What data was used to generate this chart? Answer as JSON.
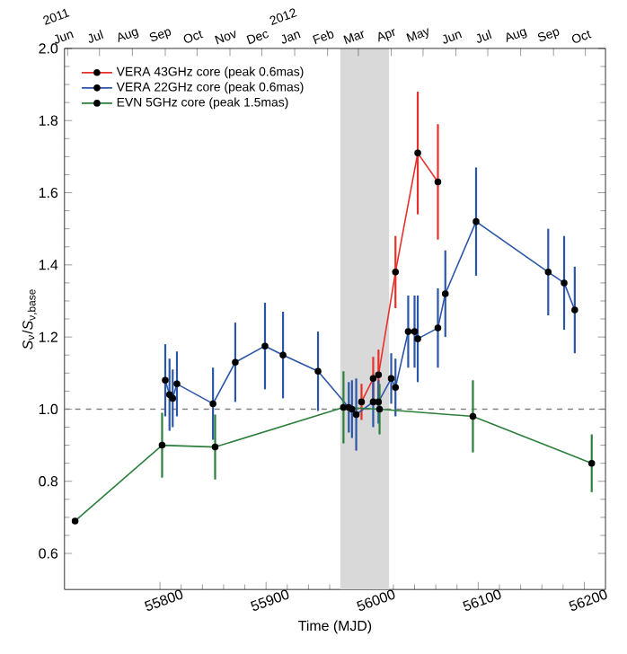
{
  "chart_data": {
    "type": "line",
    "xlabel": "Time (MJD)",
    "ylabel": "*S*$_{ν}$/*S*$_{ν,base}$",
    "xlim": [
      55710,
      56220
    ],
    "xticks": [
      55800,
      55900,
      56000,
      56100,
      56200
    ],
    "x2lim": [
      "2011-05-29",
      "2012-10-20"
    ],
    "x2ticks": [
      {
        "value": "2011-06",
        "label": "Jun"
      },
      {
        "value": "2011-07",
        "label": "Jul"
      },
      {
        "value": "2011-08",
        "label": "Aug"
      },
      {
        "value": "2011-09",
        "label": "Sep"
      },
      {
        "value": "2011-10",
        "label": "Oct"
      },
      {
        "value": "2011-11",
        "label": "Nov"
      },
      {
        "value": "2011-12",
        "label": "Dec"
      },
      {
        "value": "2012-01",
        "label": "Jan"
      },
      {
        "value": "2012-02",
        "label": "Feb"
      },
      {
        "value": "2012-03",
        "label": "Mar"
      },
      {
        "value": "2012-04",
        "label": "Apr"
      },
      {
        "value": "2012-05",
        "label": "May"
      },
      {
        "value": "2012-06",
        "label": "Jun"
      },
      {
        "value": "2012-07",
        "label": "Jul"
      },
      {
        "value": "2012-08",
        "label": "Aug"
      },
      {
        "value": "2012-09",
        "label": "Sep"
      },
      {
        "value": "2012-10",
        "label": "Oct"
      }
    ],
    "ylim": [
      0.5,
      2.0
    ],
    "yticks": [
      0.6,
      0.8,
      {
        "value": 1.0,
        "label": "1.0"
      },
      1.2,
      1.4,
      1.6,
      1.8,
      {
        "value": 2.0,
        "label": "2.0"
      }
    ],
    "annotations": [
      "2011",
      "2012"
    ],
    "ref_lines": [
      {
        "axis": "y",
        "value": 1.0,
        "color": "#808080",
        "line_style": "dashed"
      }
    ],
    "bands": [
      {
        "axis": "x",
        "from": 55970,
        "to": 56016,
        "color": "#d9d9d9"
      }
    ],
    "legend": "top left",
    "marker": "circle",
    "line_style": "solid",
    "grid": false,
    "series": [
      {
        "name": "VERA 43GHz core (peak 0.6mas)",
        "color": "#e8302a",
        "x": [
          55990,
          56001,
          56006,
          56022,
          56043,
          56062
        ],
        "values": [
          1.02,
          1.085,
          1.095,
          1.38,
          1.71,
          1.63
        ],
        "errors": [
          0.05,
          0.06,
          0.07,
          0.1,
          0.17,
          0.16
        ]
      },
      {
        "name": "VERA 22GHz core (peak 0.6mas)",
        "color": "#2a55a8",
        "x": [
          55805,
          55809,
          55812,
          55816,
          55850,
          55871,
          55899,
          55916,
          55949,
          55978,
          55981,
          55985,
          56001,
          56006,
          56018,
          56022,
          56034,
          56040,
          56043,
          56062,
          56069,
          56098,
          56166,
          56181,
          56191
        ],
        "values": [
          1.08,
          1.04,
          1.03,
          1.07,
          1.015,
          1.13,
          1.175,
          1.15,
          1.105,
          1.005,
          1.0,
          0.985,
          1.02,
          1.02,
          1.085,
          1.06,
          1.215,
          1.215,
          1.195,
          1.225,
          1.32,
          1.52,
          1.38,
          1.35,
          1.275
        ],
        "errors": [
          0.1,
          0.1,
          0.08,
          0.09,
          0.1,
          0.11,
          0.12,
          0.12,
          0.11,
          0.07,
          0.08,
          0.1,
          0.07,
          0.06,
          0.07,
          0.08,
          0.1,
          0.1,
          0.12,
          0.11,
          0.12,
          0.15,
          0.12,
          0.13,
          0.12
        ]
      },
      {
        "name": "EVN 5GHz core (peak 1.5mas)",
        "color": "#2a7f3a",
        "x": [
          55720,
          55802,
          55852,
          55973,
          56007,
          56095,
          56207
        ],
        "values": [
          0.69,
          0.9,
          0.895,
          1.005,
          1.0,
          0.98,
          0.85
        ],
        "errors": [
          null,
          0.09,
          0.09,
          0.1,
          0.07,
          0.1,
          0.08
        ]
      }
    ]
  }
}
